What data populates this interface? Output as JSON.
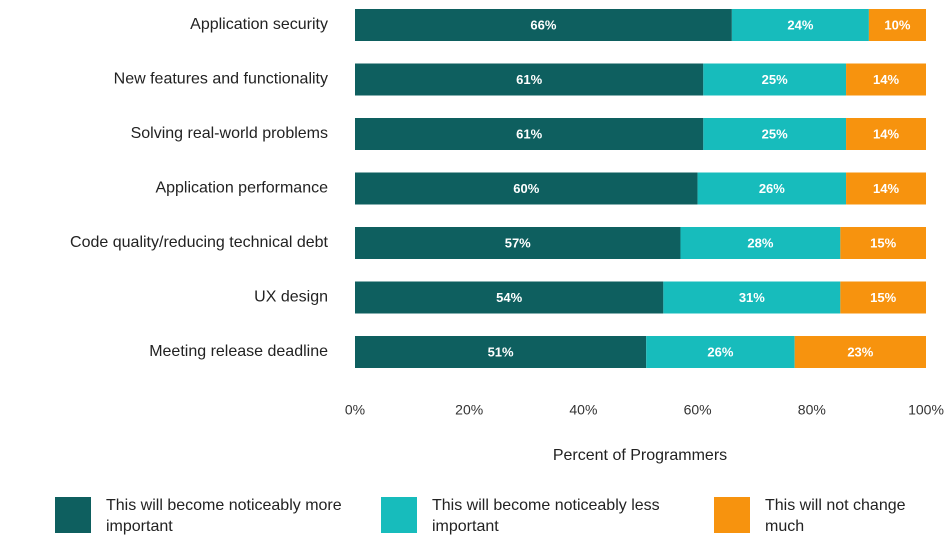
{
  "chart_data": {
    "type": "stacked-bar-horizontal",
    "categories": [
      "Application security",
      "New features and functionality",
      "Solving real-world problems",
      "Application performance",
      "Code quality/reducing technical debt",
      "UX design",
      "Meeting release deadline"
    ],
    "series": [
      {
        "name": "This will become noticeably more important",
        "color": "#0e5f5f",
        "values": [
          66,
          61,
          61,
          60,
          57,
          54,
          51
        ],
        "value_labels": [
          "66%",
          "61%",
          "61%",
          "60%",
          "57%",
          "54%",
          "51%"
        ]
      },
      {
        "name": "This will become noticeably less important",
        "color": "#17bcbc",
        "values": [
          24,
          25,
          25,
          26,
          28,
          31,
          26
        ],
        "value_labels": [
          "24%",
          "25%",
          "25%",
          "26%",
          "28%",
          "31%",
          "26%"
        ]
      },
      {
        "name": "This will not change much",
        "color": "#f7930e",
        "values": [
          10,
          14,
          14,
          14,
          15,
          15,
          23
        ],
        "value_labels": [
          "10%",
          "14%",
          "14%",
          "14%",
          "15%",
          "15%",
          "23%"
        ]
      }
    ],
    "xlabel": "Percent of Programmers",
    "xlim": [
      0,
      100
    ],
    "xticks": [
      {
        "value": 0,
        "label": "0%"
      },
      {
        "value": 20,
        "label": "20%"
      },
      {
        "value": 40,
        "label": "40%"
      },
      {
        "value": 60,
        "label": "60%"
      },
      {
        "value": 80,
        "label": "80%"
      },
      {
        "value": 100,
        "label": "100%"
      }
    ],
    "legend": "bottom"
  }
}
